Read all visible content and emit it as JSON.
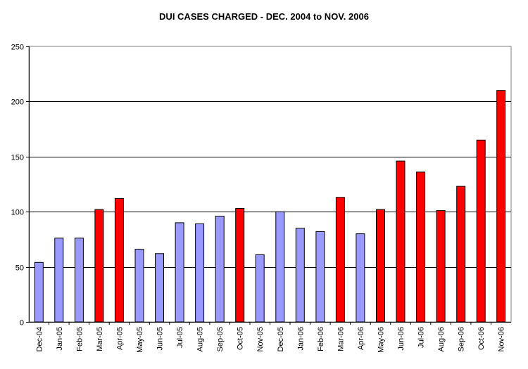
{
  "chart_data": {
    "type": "bar",
    "title": "DUI CASES CHARGED - DEC. 2004 to NOV. 2006",
    "xlabel": "",
    "ylabel": "",
    "ylim": [
      0,
      250
    ],
    "yticks": [
      0,
      50,
      100,
      150,
      200,
      250
    ],
    "grid": true,
    "legend": "none",
    "categories": [
      "Dec-04",
      "Jan-05",
      "Feb-05",
      "Mar-05",
      "Apr-05",
      "May-05",
      "Jun-05",
      "Jul-05",
      "Aug-05",
      "Sep-05",
      "Oct-05",
      "Nov-05",
      "Dec-05",
      "Jan-06",
      "Feb-06",
      "Mar-06",
      "Apr-06",
      "May-06",
      "Jun-06",
      "Jul-06",
      "Aug-06",
      "Sep-06",
      "Oct-06",
      "Nov-06"
    ],
    "values": [
      54,
      76,
      76,
      102,
      112,
      66,
      62,
      90,
      89,
      96,
      103,
      61,
      100,
      85,
      82,
      113,
      80,
      102,
      146,
      136,
      101,
      123,
      165,
      210
    ],
    "bar_colors": [
      "#9999ff",
      "#9999ff",
      "#9999ff",
      "#ff0000",
      "#ff0000",
      "#9999ff",
      "#9999ff",
      "#9999ff",
      "#9999ff",
      "#9999ff",
      "#ff0000",
      "#9999ff",
      "#9999ff",
      "#9999ff",
      "#9999ff",
      "#ff0000",
      "#9999ff",
      "#ff0000",
      "#ff0000",
      "#ff0000",
      "#ff0000",
      "#ff0000",
      "#ff0000",
      "#ff0000"
    ]
  }
}
